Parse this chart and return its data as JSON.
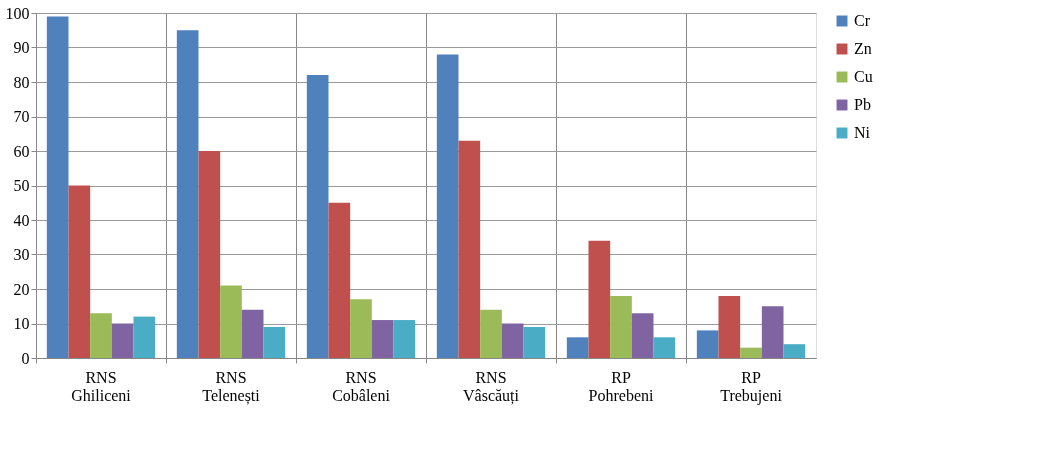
{
  "chart_data": {
    "type": "bar",
    "categories": [
      "RNS Ghiliceni",
      "RNS Telenești",
      "RNS Cobâleni",
      "RNS Vâscăuți",
      "RP Pohrebeni",
      "RP Trebujeni"
    ],
    "series": [
      {
        "name": "Cr",
        "color": "#4f81bd",
        "values": [
          99,
          95,
          82,
          88,
          6,
          8
        ]
      },
      {
        "name": "Zn",
        "color": "#c0504d",
        "values": [
          50,
          60,
          45,
          63,
          34,
          18
        ]
      },
      {
        "name": "Cu",
        "color": "#9bbb59",
        "values": [
          13,
          21,
          17,
          14,
          18,
          3
        ]
      },
      {
        "name": "Pb",
        "color": "#8064a2",
        "values": [
          10,
          14,
          11,
          10,
          13,
          15
        ]
      },
      {
        "name": "Ni",
        "color": "#4bacc6",
        "values": [
          12,
          9,
          11,
          9,
          6,
          4
        ]
      }
    ],
    "ylim": [
      0,
      100
    ],
    "yticks": [
      0,
      10,
      20,
      30,
      40,
      50,
      60,
      70,
      80,
      90,
      100
    ],
    "grid": true,
    "legend": "right"
  }
}
